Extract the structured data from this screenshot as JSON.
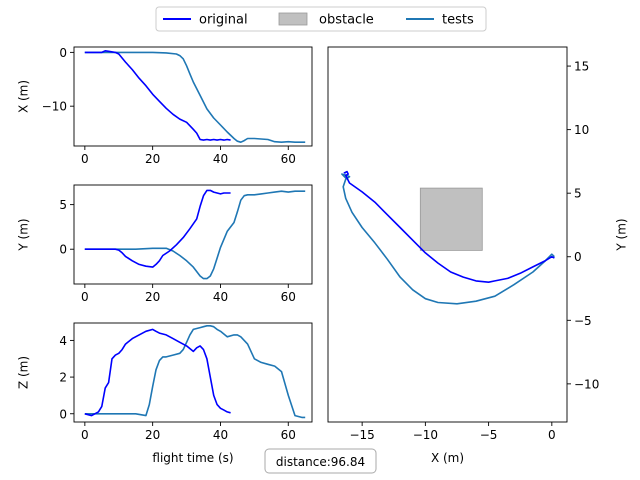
{
  "legend": {
    "placement": "top-center",
    "entries": [
      {
        "label": "original",
        "kind": "line",
        "color": "#0000ff"
      },
      {
        "label": "obstacle",
        "kind": "patch",
        "color": "#c0c0c0"
      },
      {
        "label": "tests",
        "kind": "line",
        "color": "#1f77b4"
      }
    ]
  },
  "footer": {
    "distance_label": "distance:96.84"
  },
  "chart_data": [
    {
      "id": "x",
      "type": "line",
      "xlabel": "",
      "ylabel": "X (m)",
      "xlim": [
        -3.2,
        67
      ],
      "ylim": [
        -17.4,
        1.0
      ],
      "xticks": [
        0,
        20,
        40,
        60
      ],
      "yticks": [
        0,
        -10
      ],
      "series": [
        {
          "name": "original",
          "color": "#0000ff",
          "x": [
            0,
            3,
            5,
            6,
            7,
            9,
            10,
            12,
            14,
            16,
            18,
            20,
            22,
            24,
            26,
            28,
            30,
            32,
            33,
            34,
            35,
            36,
            37,
            38,
            39,
            40,
            41,
            42,
            43
          ],
          "y": [
            0,
            0,
            0,
            0.3,
            0.2,
            0,
            -0.3,
            -1.8,
            -3.2,
            -4.8,
            -6.2,
            -7.8,
            -9.1,
            -10.4,
            -11.5,
            -12.4,
            -13.0,
            -14.3,
            -15.0,
            -16.2,
            -16.3,
            -16.2,
            -16.3,
            -16.2,
            -16.3,
            -16.2,
            -16.3,
            -16.2,
            -16.3
          ]
        },
        {
          "name": "tests",
          "color": "#1f77b4",
          "x": [
            0,
            5,
            10,
            15,
            20,
            24,
            27,
            28,
            29,
            30,
            31,
            32,
            34,
            36,
            38,
            40,
            42,
            44,
            45,
            46,
            47,
            48,
            50,
            52,
            54,
            56,
            58,
            60,
            62,
            64,
            65
          ],
          "y": [
            0,
            0,
            0,
            0,
            0,
            -0.1,
            -0.3,
            -0.6,
            -1.2,
            -2.5,
            -4.0,
            -5.5,
            -8.0,
            -10.5,
            -12.2,
            -13.5,
            -14.8,
            -16.0,
            -16.5,
            -16.7,
            -16.4,
            -16.0,
            -16.0,
            -16.1,
            -16.2,
            -16.6,
            -16.7,
            -16.6,
            -16.7,
            -16.7,
            -16.7
          ]
        }
      ]
    },
    {
      "id": "y",
      "type": "line",
      "xlabel": "",
      "ylabel": "Y (m)",
      "xlim": [
        -3.2,
        67
      ],
      "ylim": [
        -3.9,
        7.2
      ],
      "xticks": [
        0,
        20,
        40,
        60
      ],
      "yticks": [
        5,
        0
      ],
      "series": [
        {
          "name": "original",
          "color": "#0000ff",
          "x": [
            0,
            5,
            9,
            10,
            11,
            12,
            14,
            16,
            18,
            20,
            21,
            22,
            23,
            25,
            27,
            29,
            31,
            33,
            34,
            35,
            36,
            37,
            38,
            39,
            40,
            41,
            42,
            43
          ],
          "y": [
            0,
            0,
            0,
            -0.1,
            -0.4,
            -0.8,
            -1.3,
            -1.7,
            -1.9,
            -2.0,
            -1.7,
            -1.3,
            -0.7,
            -0.2,
            0.5,
            1.3,
            2.3,
            3.4,
            4.8,
            6.0,
            6.6,
            6.6,
            6.4,
            6.3,
            6.2,
            6.3,
            6.3,
            6.3
          ]
        },
        {
          "name": "tests",
          "color": "#1f77b4",
          "x": [
            0,
            10,
            15,
            20,
            22,
            24,
            26,
            28,
            30,
            32,
            34,
            35,
            36,
            37,
            38,
            39,
            40,
            42,
            44,
            45,
            46,
            47,
            48,
            50,
            52,
            54,
            56,
            58,
            60,
            62,
            65
          ],
          "y": [
            0,
            0,
            0,
            0.1,
            0.1,
            0.1,
            -0.2,
            -0.7,
            -1.3,
            -2.0,
            -3.0,
            -3.3,
            -3.3,
            -3.0,
            -2.2,
            -1.0,
            0.2,
            2.0,
            3.0,
            4.2,
            5.5,
            6.0,
            6.1,
            6.1,
            6.2,
            6.3,
            6.4,
            6.5,
            6.4,
            6.5,
            6.5
          ]
        }
      ]
    },
    {
      "id": "z",
      "type": "line",
      "xlabel": "flight time (s)",
      "ylabel": "Z (m)",
      "xlim": [
        -3.2,
        67
      ],
      "ylim": [
        -0.45,
        4.95
      ],
      "xticks": [
        0,
        20,
        40,
        60
      ],
      "yticks": [
        0,
        2,
        4
      ],
      "series": [
        {
          "name": "original",
          "color": "#0000ff",
          "x": [
            0,
            2,
            4,
            5,
            6,
            7,
            8,
            9,
            10,
            11,
            12,
            14,
            16,
            18,
            20,
            21,
            22,
            24,
            26,
            28,
            30,
            32,
            33,
            34,
            35,
            36,
            37,
            38,
            39,
            40,
            41,
            42,
            43
          ],
          "y": [
            0,
            -0.1,
            0.1,
            0.4,
            1.4,
            1.7,
            3.0,
            3.2,
            3.3,
            3.5,
            3.8,
            4.1,
            4.3,
            4.5,
            4.6,
            4.5,
            4.4,
            4.3,
            4.1,
            3.9,
            3.7,
            3.4,
            3.6,
            3.7,
            3.5,
            3.0,
            2.0,
            1.0,
            0.5,
            0.3,
            0.2,
            0.1,
            0.05
          ]
        },
        {
          "name": "tests",
          "color": "#1f77b4",
          "x": [
            0,
            5,
            10,
            15,
            18,
            19,
            20,
            21,
            22,
            23,
            24,
            26,
            28,
            29,
            30,
            31,
            32,
            34,
            35,
            36,
            37,
            38,
            39,
            40,
            42,
            44,
            45,
            46,
            48,
            50,
            52,
            54,
            56,
            58,
            60,
            62,
            64,
            65
          ],
          "y": [
            0,
            0,
            0,
            0,
            -0.1,
            0.5,
            1.5,
            2.4,
            2.9,
            3.1,
            3.1,
            3.2,
            3.3,
            3.5,
            3.9,
            4.3,
            4.6,
            4.7,
            4.75,
            4.8,
            4.8,
            4.75,
            4.6,
            4.5,
            4.2,
            4.3,
            4.3,
            4.2,
            3.8,
            3.0,
            2.8,
            2.7,
            2.6,
            2.3,
            1.0,
            -0.1,
            -0.2,
            -0.2
          ]
        }
      ]
    },
    {
      "id": "xy",
      "type": "line",
      "xlabel": "X (m)",
      "ylabel": "Y (m)",
      "xlim": [
        -17.7,
        1.2
      ],
      "ylim": [
        -13,
        16.5
      ],
      "xticks": [
        -15,
        -10,
        -5,
        0
      ],
      "yticks": [
        15,
        10,
        5,
        0,
        -5,
        -10
      ],
      "obstacle": {
        "x": [
          -10.4,
          -5.5
        ],
        "y": [
          0.5,
          5.4
        ],
        "color": "#c0c0c0"
      },
      "series": [
        {
          "name": "original",
          "color": "#0000ff",
          "x": [
            0.2,
            0,
            -0.5,
            -1.5,
            -2.5,
            -3.5,
            -4.5,
            -5.0,
            -6.0,
            -7.0,
            -8.0,
            -9.0,
            -10.0,
            -11.0,
            -12.0,
            -13.0,
            -14.0,
            -15.0,
            -16.0,
            -16.3,
            -16.1,
            -16.2,
            -16.4,
            -16.3
          ],
          "y": [
            -0.1,
            0,
            -0.3,
            -0.8,
            -1.3,
            -1.7,
            -1.9,
            -2.0,
            -1.9,
            -1.6,
            -1.2,
            -0.5,
            0.3,
            1.3,
            2.3,
            3.3,
            4.3,
            5.1,
            5.8,
            6.4,
            6.5,
            6.7,
            6.6,
            6.6
          ]
        },
        {
          "name": "tests",
          "color": "#1f77b4",
          "x": [
            0.2,
            0,
            -0.5,
            -1.5,
            -3,
            -4.5,
            -6,
            -7.5,
            -9,
            -10,
            -11,
            -12,
            -13,
            -14,
            -15,
            -15.8,
            -16.3,
            -16.5,
            -16.3,
            -16.0,
            -16.2,
            -16.6,
            -16.3,
            -16.6
          ],
          "y": [
            0,
            0.2,
            -0.3,
            -1.2,
            -2.2,
            -3.1,
            -3.5,
            -3.7,
            -3.6,
            -3.3,
            -2.6,
            -1.6,
            -0.2,
            1.1,
            2.3,
            3.5,
            4.6,
            5.5,
            6.1,
            6.3,
            6.4,
            6.5,
            6.2,
            6.5
          ]
        }
      ]
    }
  ]
}
